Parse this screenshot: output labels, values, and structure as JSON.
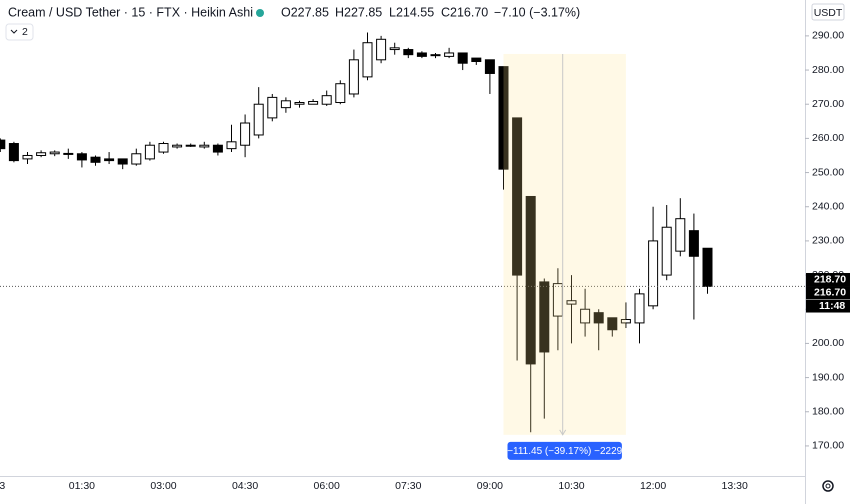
{
  "chart_data": {
    "type": "candlestick",
    "title": "Cream / USD Tether · 15 · FTX · Heikin Ashi",
    "ohlc": [
      "O227.85",
      "H227.85",
      "L214.55",
      "C216.70",
      "−7.10 (−3.17%)"
    ],
    "indicator_count": "2",
    "currency": "USDT",
    "categories": [
      "3",
      null,
      null,
      null,
      null,
      null,
      "01:30",
      null,
      null,
      null,
      null,
      null,
      "03:00",
      null,
      null,
      null,
      null,
      null,
      "04:30",
      null,
      null,
      null,
      null,
      null,
      "06:00",
      null,
      null,
      null,
      null,
      null,
      "07:30",
      null,
      null,
      null,
      null,
      null,
      "09:00",
      null,
      null,
      null,
      null,
      null,
      "10:30",
      null,
      null,
      null,
      null,
      null,
      "12:00",
      null,
      null,
      null,
      null,
      null,
      "13:30"
    ],
    "open": [
      259.5,
      258.5,
      254,
      255,
      255.5,
      255.6,
      255.5,
      254.5,
      254,
      254,
      252.5,
      254,
      256,
      257.5,
      258,
      257.5,
      258,
      257,
      258,
      261,
      266,
      269,
      270,
      270,
      270,
      270.5,
      273,
      278,
      283,
      286,
      286,
      285,
      284.5,
      284,
      285,
      283.5,
      283,
      281,
      266,
      243,
      218,
      208,
      211.5,
      206,
      209,
      207.5,
      206,
      206,
      211,
      220,
      227,
      233,
      227.85,
      null,
      null
    ],
    "high": [
      260,
      259,
      256,
      256.5,
      256.5,
      257,
      256,
      255,
      256,
      254,
      257,
      259,
      259,
      258.5,
      258.5,
      259,
      258.5,
      264,
      267,
      275,
      273,
      272,
      271,
      271.5,
      274,
      277,
      286,
      291,
      290,
      288,
      286.5,
      285.5,
      285,
      286.5,
      285,
      283.5,
      283,
      281,
      266,
      243,
      219,
      222,
      220,
      216,
      210,
      207.5,
      212,
      216,
      240,
      240.5,
      242.5,
      238,
      227.85,
      null,
      null
    ],
    "low": [
      256,
      253,
      252.5,
      254.5,
      254.8,
      254,
      251.5,
      252,
      252.5,
      251,
      252,
      253.5,
      255.5,
      257,
      257.5,
      257,
      255,
      256,
      254.5,
      260,
      265,
      267.5,
      269,
      270,
      269.5,
      270,
      272,
      277,
      282,
      284.5,
      283.5,
      283.5,
      283.5,
      283.5,
      280,
      281.5,
      273,
      245,
      195,
      174,
      178,
      198,
      200,
      202,
      198,
      202,
      204.5,
      200,
      210,
      218.5,
      225.5,
      207,
      214.55,
      null,
      null
    ],
    "close": [
      257,
      253.5,
      255,
      255.8,
      256,
      255.6,
      253.7,
      253,
      253.5,
      252.5,
      255.5,
      258,
      258.5,
      258,
      257.8,
      258,
      256,
      259,
      264.5,
      270,
      272,
      271,
      270.5,
      270.8,
      272.5,
      276,
      283,
      288,
      289,
      286.5,
      284.5,
      284,
      284.3,
      285,
      282,
      282.5,
      279,
      251,
      220,
      194,
      197.5,
      217.5,
      212.5,
      210,
      206,
      204,
      207,
      214.5,
      230,
      234,
      236.5,
      225.5,
      216.7,
      null,
      null
    ],
    "up_color": "#ffffff",
    "down_color": "#000000",
    "ylim": [
      161.2,
      300.5
    ],
    "yticks": [
      {
        "value": 170,
        "label": "170.00"
      },
      {
        "value": 180,
        "label": "180.00"
      },
      {
        "value": 190,
        "label": "190.00"
      },
      {
        "value": 200,
        "label": "200.00"
      },
      {
        "value": 210,
        "label": "210.00"
      },
      {
        "value": 220,
        "label": "220.00"
      },
      {
        "value": 230,
        "label": "230.00"
      },
      {
        "value": 240,
        "label": "240.00"
      },
      {
        "value": 250,
        "label": "250.00"
      },
      {
        "value": 260,
        "label": "260.00"
      },
      {
        "value": 270,
        "label": "270.00"
      },
      {
        "value": 280,
        "label": "280.00"
      },
      {
        "value": 290,
        "label": "290.00"
      }
    ],
    "price_labels": [
      {
        "value": 218.7,
        "label": "218.70"
      },
      {
        "value": 216.7,
        "label": "216.70"
      }
    ],
    "countdown": "11:48",
    "measure": {
      "start": 37,
      "end": 46,
      "from": 284.7,
      "to": 173.25,
      "label": "−111.45 (−39.17%) −2229"
    }
  }
}
